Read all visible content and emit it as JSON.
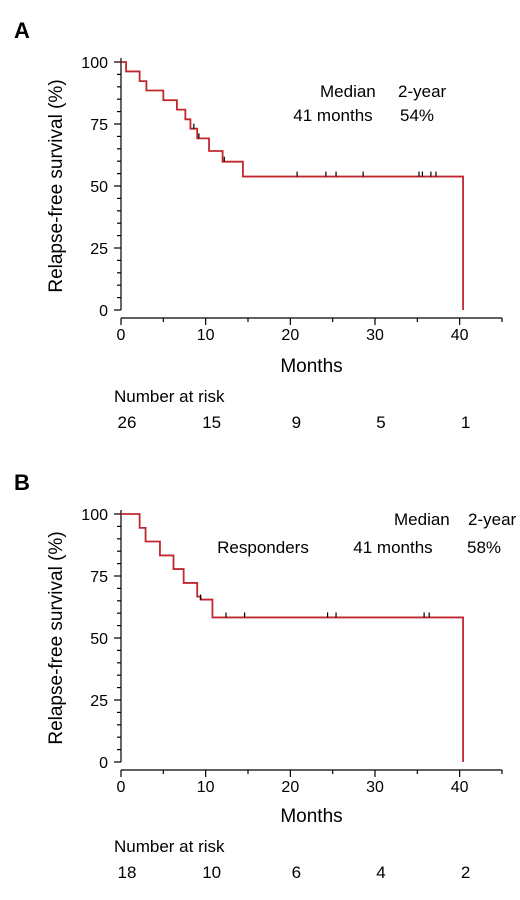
{
  "chart_data": [
    {
      "type": "line",
      "panel_label": "A",
      "xlabel": "Months",
      "ylabel": "Relapse-free survival (%)",
      "xlim": [
        0,
        45
      ],
      "ylim": [
        0,
        100
      ],
      "x_ticks": [
        0,
        10,
        20,
        30,
        40
      ],
      "y_ticks": [
        0,
        25,
        50,
        75,
        100
      ],
      "annotation": {
        "header_left": "Median",
        "header_right": "2-year",
        "group": "",
        "median": "41 months",
        "two_year": "54%"
      },
      "series": [
        {
          "color": "#c0282f",
          "steps": [
            [
              0,
              100
            ],
            [
              0.6,
              96.2
            ],
            [
              2.2,
              92.3
            ],
            [
              3.0,
              88.5
            ],
            [
              5.0,
              84.6
            ],
            [
              6.6,
              80.8
            ],
            [
              7.6,
              76.9
            ],
            [
              8.2,
              73.1
            ],
            [
              9.0,
              69.2
            ],
            [
              10.4,
              64.1
            ],
            [
              12.0,
              59.8
            ],
            [
              14.4,
              53.8
            ],
            [
              40.4,
              53.8
            ],
            [
              40.4,
              0
            ]
          ],
          "censor_times": [
            8.6,
            9.2,
            12.2,
            20.8,
            24.2,
            25.4,
            28.6,
            35.2,
            35.6,
            36.6,
            37.2
          ]
        }
      ],
      "risk_table": {
        "title": "Number at risk",
        "times": [
          0,
          10,
          20,
          30,
          40
        ],
        "values": [
          "26",
          "15",
          "9",
          "5",
          "1"
        ]
      }
    },
    {
      "type": "line",
      "panel_label": "B",
      "xlabel": "Months",
      "ylabel": "Relapse-free survival (%)",
      "xlim": [
        0,
        45
      ],
      "ylim": [
        0,
        100
      ],
      "x_ticks": [
        0,
        10,
        20,
        30,
        40
      ],
      "y_ticks": [
        0,
        25,
        50,
        75,
        100
      ],
      "annotation": {
        "header_left": "Median",
        "header_right": "2-year",
        "group": "Responders",
        "median": "41 months",
        "two_year": "58%"
      },
      "series": [
        {
          "name": "Responders",
          "color": "#c0282f",
          "steps": [
            [
              0,
              100
            ],
            [
              2.2,
              94.4
            ],
            [
              2.9,
              88.9
            ],
            [
              4.6,
              83.3
            ],
            [
              6.2,
              77.8
            ],
            [
              7.4,
              72.2
            ],
            [
              9.0,
              66.7
            ],
            [
              9.4,
              65.5
            ],
            [
              10.8,
              58.3
            ],
            [
              40.4,
              58.3
            ],
            [
              40.4,
              0
            ]
          ],
          "censor_times": [
            9.4,
            12.4,
            14.6,
            24.4,
            25.4,
            35.8,
            36.4
          ]
        }
      ],
      "risk_table": {
        "title": "Number at risk",
        "times": [
          0,
          10,
          20,
          30,
          40
        ],
        "values": [
          "18",
          "10",
          "6",
          "4",
          "2"
        ]
      }
    }
  ]
}
